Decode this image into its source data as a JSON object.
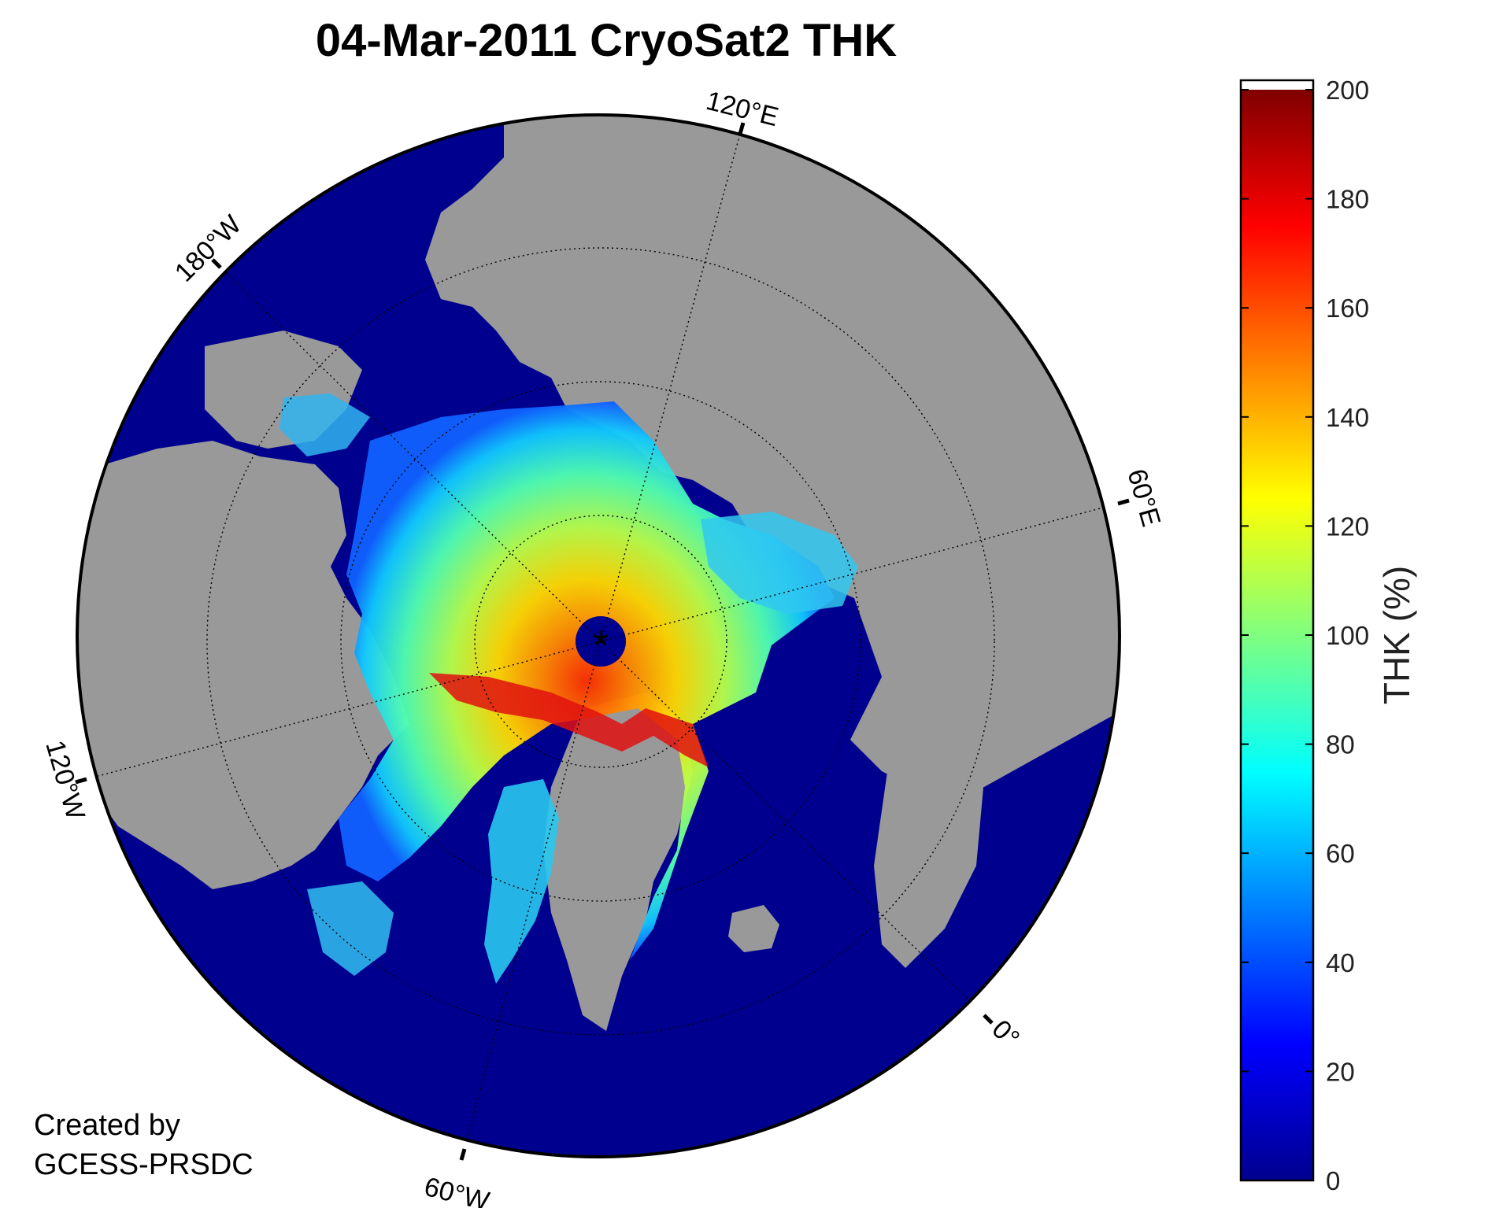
{
  "title": "04-Mar-2011 CryoSat2 THK",
  "credit": [
    "Created by",
    "GCESS-PRSDC"
  ],
  "map": {
    "projection": "north polar stereographic",
    "ocean_color": "#00008f",
    "land_color": "#999999",
    "meridian_labels": {
      "e120": "120°E",
      "e60": "60°E",
      "zero": "0°",
      "w60": "60°W",
      "w120": "120°W",
      "w180": "180°W"
    },
    "pole_marker": "*"
  },
  "colorbar": {
    "label": "THK (%)",
    "colormap": "jet",
    "range": [
      0,
      200
    ],
    "ticks": [
      "0",
      "20",
      "40",
      "60",
      "80",
      "100",
      "120",
      "140",
      "160",
      "180",
      "200"
    ]
  }
}
